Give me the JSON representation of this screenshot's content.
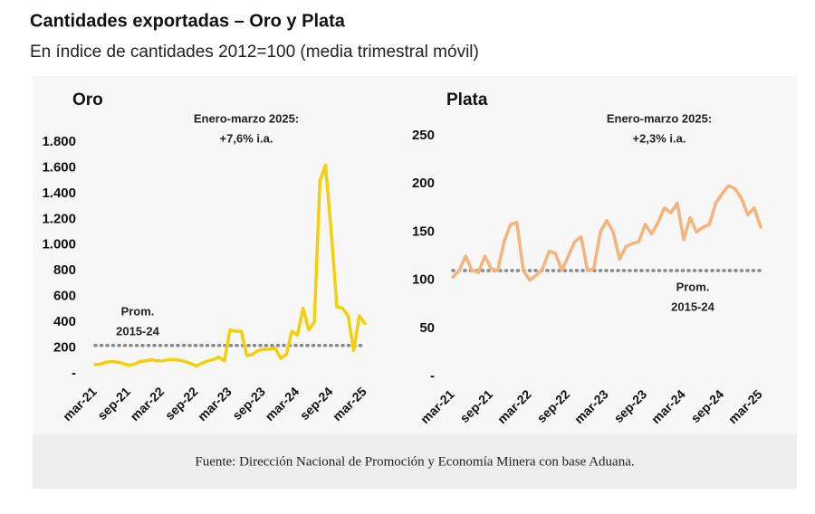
{
  "title": "Cantidades exportadas – Oro y Plata",
  "subtitle": "En índice de cantidades 2012=100 (media trimestral móvil)",
  "source": "Fuente: Dirección Nacional de Promoción y Economía Minera con base Aduana.",
  "chart_data": [
    {
      "type": "line",
      "title": "Oro",
      "color": "#f5cf0a",
      "annotation": [
        "Enero-marzo 2025:",
        "+7,6% i.a."
      ],
      "reference": {
        "value": 220,
        "label": [
          "Prom.",
          "2015-24"
        ]
      },
      "categories": [
        "mar-21",
        null,
        null,
        null,
        null,
        null,
        "sep-21",
        null,
        null,
        null,
        null,
        null,
        "mar-22",
        null,
        null,
        null,
        null,
        null,
        "sep-22",
        null,
        null,
        null,
        null,
        null,
        "mar-23",
        null,
        null,
        null,
        null,
        null,
        "sep-23",
        null,
        null,
        null,
        null,
        null,
        "mar-24",
        null,
        null,
        null,
        null,
        null,
        "sep-24",
        null,
        null,
        null,
        null,
        null,
        "mar-25"
      ],
      "values": [
        70,
        75,
        90,
        95,
        90,
        80,
        65,
        75,
        95,
        100,
        110,
        100,
        100,
        110,
        110,
        105,
        95,
        80,
        60,
        80,
        100,
        110,
        130,
        100,
        340,
        330,
        330,
        140,
        150,
        180,
        190,
        190,
        200,
        120,
        150,
        330,
        300,
        510,
        340,
        400,
        1500,
        1620,
        1100,
        520,
        510,
        450,
        180,
        450,
        390
      ],
      "ylim": [
        0,
        1800
      ],
      "yticks": [
        {
          "value": 0,
          "label": "-"
        },
        200,
        400,
        600,
        800,
        {
          "value": 1000,
          "label": "1.000"
        },
        {
          "value": 1200,
          "label": "1.200"
        },
        {
          "value": 1400,
          "label": "1.400"
        },
        {
          "value": 1600,
          "label": "1.600"
        },
        {
          "value": 1800,
          "label": "1.800"
        }
      ]
    },
    {
      "type": "line",
      "title": "Plata",
      "color": "#f6b47c",
      "annotation": [
        "Enero-marzo 2025:",
        "+2,3% i.a."
      ],
      "reference": {
        "value": 110,
        "label": [
          "Prom.",
          "2015-24"
        ]
      },
      "categories": [
        "mar-21",
        null,
        null,
        null,
        null,
        null,
        "sep-21",
        null,
        null,
        null,
        null,
        null,
        "mar-22",
        null,
        null,
        null,
        null,
        null,
        "sep-22",
        null,
        null,
        null,
        null,
        null,
        "mar-23",
        null,
        null,
        null,
        null,
        null,
        "sep-23",
        null,
        null,
        null,
        null,
        null,
        "mar-24",
        null,
        null,
        null,
        null,
        null,
        "sep-24",
        null,
        null,
        null,
        null,
        null,
        "mar-25"
      ],
      "values": [
        103,
        110,
        125,
        110,
        108,
        125,
        112,
        110,
        140,
        158,
        160,
        110,
        100,
        105,
        112,
        130,
        128,
        110,
        125,
        140,
        145,
        110,
        112,
        150,
        162,
        150,
        122,
        135,
        138,
        140,
        158,
        148,
        160,
        175,
        170,
        180,
        142,
        165,
        150,
        155,
        158,
        180,
        190,
        198,
        195,
        185,
        168,
        175,
        155
      ],
      "ylim": [
        0,
        250
      ],
      "yticks": [
        {
          "value": 0,
          "label": "-"
        },
        50,
        100,
        150,
        200,
        250
      ]
    }
  ]
}
